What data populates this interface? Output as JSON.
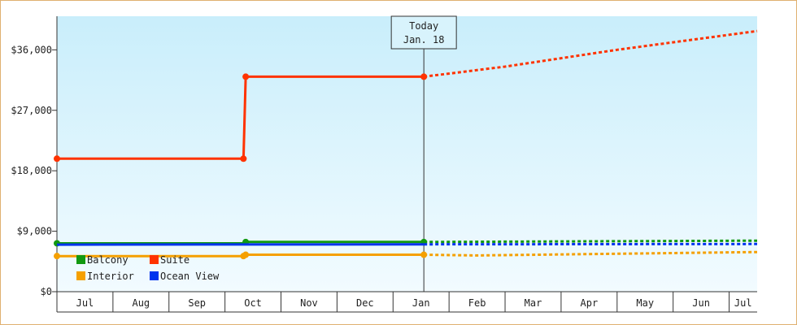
{
  "chart_data": {
    "type": "line",
    "title": "",
    "xlabel": "",
    "ylabel": "",
    "x_categories": [
      "Jul",
      "Aug",
      "Sep",
      "Oct",
      "Nov",
      "Dec",
      "Jan",
      "Feb",
      "Mar",
      "Apr",
      "May",
      "Jun",
      "Jul"
    ],
    "y_ticks": [
      "$0",
      "$9,000",
      "$18,000",
      "$27,000",
      "$36,000"
    ],
    "ylim": [
      0,
      41000
    ],
    "x_range_months": [
      0,
      12.5
    ],
    "today": {
      "line1": "Today",
      "line2": "Jan. 18",
      "x": 6.55
    },
    "legend": {
      "placement": "bottom-left"
    },
    "grid": false,
    "series": [
      {
        "name": "Suite",
        "color": "#ff3300",
        "actual": [
          [
            0,
            19800
          ],
          [
            3.33,
            19800
          ],
          [
            3.37,
            32000
          ],
          [
            6.55,
            32000
          ]
        ],
        "markers": [
          [
            0,
            19800
          ],
          [
            3.33,
            19800
          ],
          [
            3.37,
            32000
          ],
          [
            6.55,
            32000
          ]
        ],
        "forecast": [
          [
            6.55,
            32000
          ],
          [
            8,
            33500
          ],
          [
            10,
            36000
          ],
          [
            12.5,
            38800
          ]
        ]
      },
      {
        "name": "Balcony",
        "color": "#119911",
        "actual": [
          [
            0,
            7200
          ],
          [
            3.33,
            7200
          ],
          [
            3.37,
            7400
          ],
          [
            6.55,
            7400
          ]
        ],
        "markers": [
          [
            0,
            7200
          ],
          [
            3.37,
            7400
          ],
          [
            6.55,
            7400
          ]
        ],
        "forecast": [
          [
            6.55,
            7400
          ],
          [
            12.5,
            7600
          ]
        ]
      },
      {
        "name": "Ocean View",
        "color": "#0033ee",
        "actual": [
          [
            0,
            7000
          ],
          [
            6.55,
            7050
          ]
        ],
        "markers": [],
        "forecast": [
          [
            6.55,
            7050
          ],
          [
            12.5,
            7100
          ]
        ]
      },
      {
        "name": "Interior",
        "color": "#f5a000",
        "actual": [
          [
            0,
            5300
          ],
          [
            3.33,
            5300
          ],
          [
            3.37,
            5500
          ],
          [
            6.55,
            5500
          ]
        ],
        "markers": [
          [
            0,
            5300
          ],
          [
            3.33,
            5300
          ],
          [
            3.37,
            5500
          ],
          [
            6.55,
            5500
          ]
        ],
        "forecast": [
          [
            6.55,
            5500
          ],
          [
            7.5,
            5400
          ],
          [
            12.5,
            5900
          ]
        ]
      }
    ],
    "legend_order": [
      "Balcony",
      "Suite",
      "Interior",
      "Ocean View"
    ]
  }
}
